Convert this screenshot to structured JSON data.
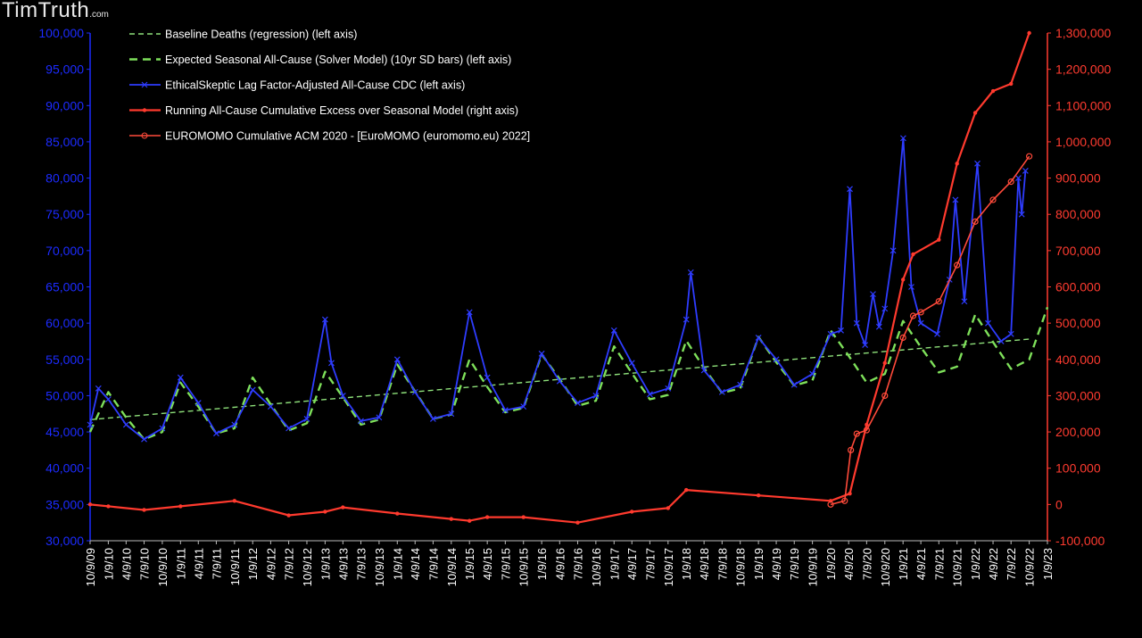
{
  "watermark": {
    "text": "TimTruth",
    "suffix": ".com"
  },
  "chart_data": {
    "type": "line",
    "legend_position": "top-left",
    "grid": false,
    "colors": {
      "left_axis": "#1c2bff",
      "right_axis": "#ff3b30",
      "baseline": "#8ee07a",
      "expected": "#7ee05a",
      "cdc": "#2e3cff",
      "running_excess": "#ff3a2e",
      "euromomo": "#ff4a3a"
    },
    "y_left": {
      "lim": [
        30000,
        100000
      ],
      "ticks": [
        "30,000",
        "35,000",
        "40,000",
        "45,000",
        "50,000",
        "55,000",
        "60,000",
        "65,000",
        "70,000",
        "75,000",
        "80,000",
        "85,000",
        "90,000",
        "95,000",
        "100,000"
      ]
    },
    "y_right": {
      "lim": [
        -100000,
        1300000
      ],
      "ticks": [
        "-100,000",
        "0",
        "100,000",
        "200,000",
        "300,000",
        "400,000",
        "500,000",
        "600,000",
        "700,000",
        "800,000",
        "900,000",
        "1,000,000",
        "1,100,000",
        "1,200,000",
        "1,300,000"
      ]
    },
    "x_ticks": [
      "10/9/09",
      "1/9/10",
      "4/9/10",
      "7/9/10",
      "10/9/10",
      "1/9/11",
      "4/9/11",
      "7/9/11",
      "10/9/11",
      "1/9/12",
      "4/9/12",
      "7/9/12",
      "10/9/12",
      "1/9/13",
      "4/9/13",
      "7/9/13",
      "10/9/13",
      "1/9/14",
      "4/9/14",
      "7/9/14",
      "10/9/14",
      "1/9/15",
      "4/9/15",
      "7/9/15",
      "10/9/15",
      "1/9/16",
      "4/9/16",
      "7/9/16",
      "10/9/16",
      "1/9/17",
      "4/9/17",
      "7/9/17",
      "10/9/17",
      "1/9/18",
      "4/9/18",
      "7/9/18",
      "10/9/18",
      "1/9/19",
      "4/9/19",
      "7/9/19",
      "10/9/19",
      "1/9/20",
      "4/9/20",
      "7/9/20",
      "10/9/20",
      "1/9/21",
      "4/9/21",
      "7/9/21",
      "10/9/21",
      "1/9/22",
      "4/9/22",
      "7/9/22",
      "10/9/22",
      "1/9/23"
    ],
    "series": [
      {
        "name": "Baseline Deaths (regression) (left axis)",
        "axis": "left",
        "style": "dash-thin",
        "x": [
          "10/9/09",
          "10/9/22"
        ],
        "values": [
          46700,
          57800
        ]
      },
      {
        "name": "Expected Seasonal All-Cause (Solver Model) (10yr SD bars) (left axis)",
        "axis": "left",
        "style": "dash-thick",
        "x": [
          "10/9/09",
          "1/9/10",
          "4/9/10",
          "7/9/10",
          "10/9/10",
          "1/9/11",
          "4/9/11",
          "7/9/11",
          "10/9/11",
          "1/9/12",
          "4/9/12",
          "7/9/12",
          "10/9/12",
          "1/9/13",
          "4/9/13",
          "7/9/13",
          "10/9/13",
          "1/9/14",
          "4/9/14",
          "7/9/14",
          "10/9/14",
          "1/9/15",
          "4/9/15",
          "7/9/15",
          "10/9/15",
          "1/9/16",
          "4/9/16",
          "7/9/16",
          "10/9/16",
          "1/9/17",
          "4/9/17",
          "7/9/17",
          "10/9/17",
          "1/9/18",
          "4/9/18",
          "7/9/18",
          "10/9/18",
          "1/9/19",
          "4/9/19",
          "7/9/19",
          "10/9/19",
          "1/9/20",
          "4/9/20",
          "7/9/20",
          "10/9/20",
          "1/9/21",
          "4/9/21",
          "7/9/21",
          "10/9/21",
          "1/9/22",
          "4/9/22",
          "7/9/22",
          "10/9/22",
          "1/9/23"
        ],
        "values": [
          45000,
          50500,
          47000,
          44000,
          45000,
          51800,
          48500,
          44800,
          45500,
          52500,
          48800,
          45200,
          46200,
          53300,
          49800,
          46000,
          46700,
          54300,
          50600,
          46800,
          47400,
          55000,
          51200,
          47700,
          48300,
          55700,
          52300,
          48600,
          49300,
          56800,
          53100,
          49500,
          50100,
          57600,
          53800,
          50400,
          51000,
          58100,
          54600,
          51400,
          52100,
          59000,
          55500,
          51800,
          53000,
          60300,
          56700,
          53200,
          54000,
          61200,
          57400,
          53700,
          55000,
          62200
        ]
      },
      {
        "name": "EthicalSkeptic Lag Factor-Adjusted All-Cause CDC (left axis)",
        "axis": "left",
        "style": "line-markers",
        "x": [
          "10/9/09",
          "11/20/09",
          "1/9/10",
          "4/9/10",
          "7/9/10",
          "10/9/10",
          "1/9/11",
          "4/9/11",
          "7/9/11",
          "10/9/11",
          "1/9/12",
          "4/9/12",
          "7/9/12",
          "10/9/12",
          "1/9/13",
          "2/10/13",
          "4/9/13",
          "7/9/13",
          "10/9/13",
          "1/9/14",
          "4/9/14",
          "7/9/14",
          "10/9/14",
          "1/9/15",
          "4/9/15",
          "7/9/15",
          "10/9/15",
          "1/9/16",
          "4/9/16",
          "7/9/16",
          "10/9/16",
          "1/9/17",
          "4/9/17",
          "7/9/17",
          "10/9/17",
          "1/9/18",
          "2/1/18",
          "4/9/18",
          "7/9/18",
          "10/9/18",
          "1/9/19",
          "4/9/19",
          "7/9/19",
          "10/9/19",
          "1/9/20",
          "3/1/20",
          "4/15/20",
          "5/20/20",
          "7/1/20",
          "8/10/20",
          "9/10/20",
          "10/9/20",
          "11/20/20",
          "1/10/21",
          "2/20/21",
          "4/9/21",
          "7/1/21",
          "9/1/21",
          "10/1/21",
          "11/15/21",
          "1/20/22",
          "3/15/22",
          "5/20/22",
          "7/9/22",
          "8/15/22",
          "9/1/22",
          "9/20/22"
        ],
        "values": [
          46000,
          51000,
          49500,
          46000,
          44000,
          45500,
          52500,
          49000,
          44800,
          46000,
          50800,
          48500,
          45500,
          46800,
          60500,
          54500,
          50000,
          46500,
          47000,
          55000,
          50500,
          46800,
          47500,
          61500,
          52500,
          48000,
          48500,
          55800,
          52000,
          49000,
          50000,
          59000,
          54500,
          50200,
          51000,
          60500,
          67000,
          53500,
          50500,
          51500,
          58000,
          55000,
          51500,
          53000,
          58500,
          59000,
          78500,
          60000,
          57000,
          64000,
          59500,
          62000,
          70000,
          85500,
          65000,
          60000,
          58500,
          66000,
          77000,
          63000,
          82000,
          60000,
          57500,
          58500,
          80000,
          75000,
          81000
        ]
      },
      {
        "name": "Running All-Cause Cumulative Excess over Seasonal Model (right axis)",
        "axis": "right",
        "style": "line-dots",
        "x": [
          "10/9/09",
          "1/9/10",
          "7/9/10",
          "1/9/11",
          "10/9/11",
          "7/9/12",
          "1/9/13",
          "4/9/13",
          "1/9/14",
          "10/9/14",
          "1/9/15",
          "4/9/15",
          "10/9/15",
          "7/9/16",
          "4/9/17",
          "10/9/17",
          "1/9/18",
          "1/9/19",
          "1/9/20",
          "4/15/20",
          "7/9/20",
          "10/9/20",
          "1/9/21",
          "3/1/21",
          "7/9/21",
          "10/9/21",
          "1/9/22",
          "4/9/22",
          "7/9/22",
          "10/9/22"
        ],
        "values": [
          0,
          -5000,
          -15000,
          -5000,
          10000,
          -30000,
          -20000,
          -8000,
          -25000,
          -40000,
          -45000,
          -35000,
          -35000,
          -50000,
          -20000,
          -10000,
          40000,
          25000,
          10000,
          30000,
          220000,
          390000,
          620000,
          690000,
          730000,
          940000,
          1080000,
          1140000,
          1160000,
          1300000
        ]
      },
      {
        "name": "EUROMOMO Cumulative ACM 2020 - [EuroMOMO (euromomo.eu) 2022]",
        "axis": "right",
        "style": "line-circles",
        "x": [
          "1/9/20",
          "3/20/20",
          "4/20/20",
          "5/20/20",
          "7/9/20",
          "10/9/20",
          "1/9/21",
          "3/1/21",
          "4/9/21",
          "7/9/21",
          "10/9/21",
          "1/9/22",
          "4/9/22",
          "7/9/22",
          "10/9/22"
        ],
        "values": [
          0,
          10000,
          150000,
          195000,
          205000,
          300000,
          460000,
          520000,
          530000,
          560000,
          660000,
          780000,
          840000,
          890000,
          960000
        ]
      }
    ]
  }
}
